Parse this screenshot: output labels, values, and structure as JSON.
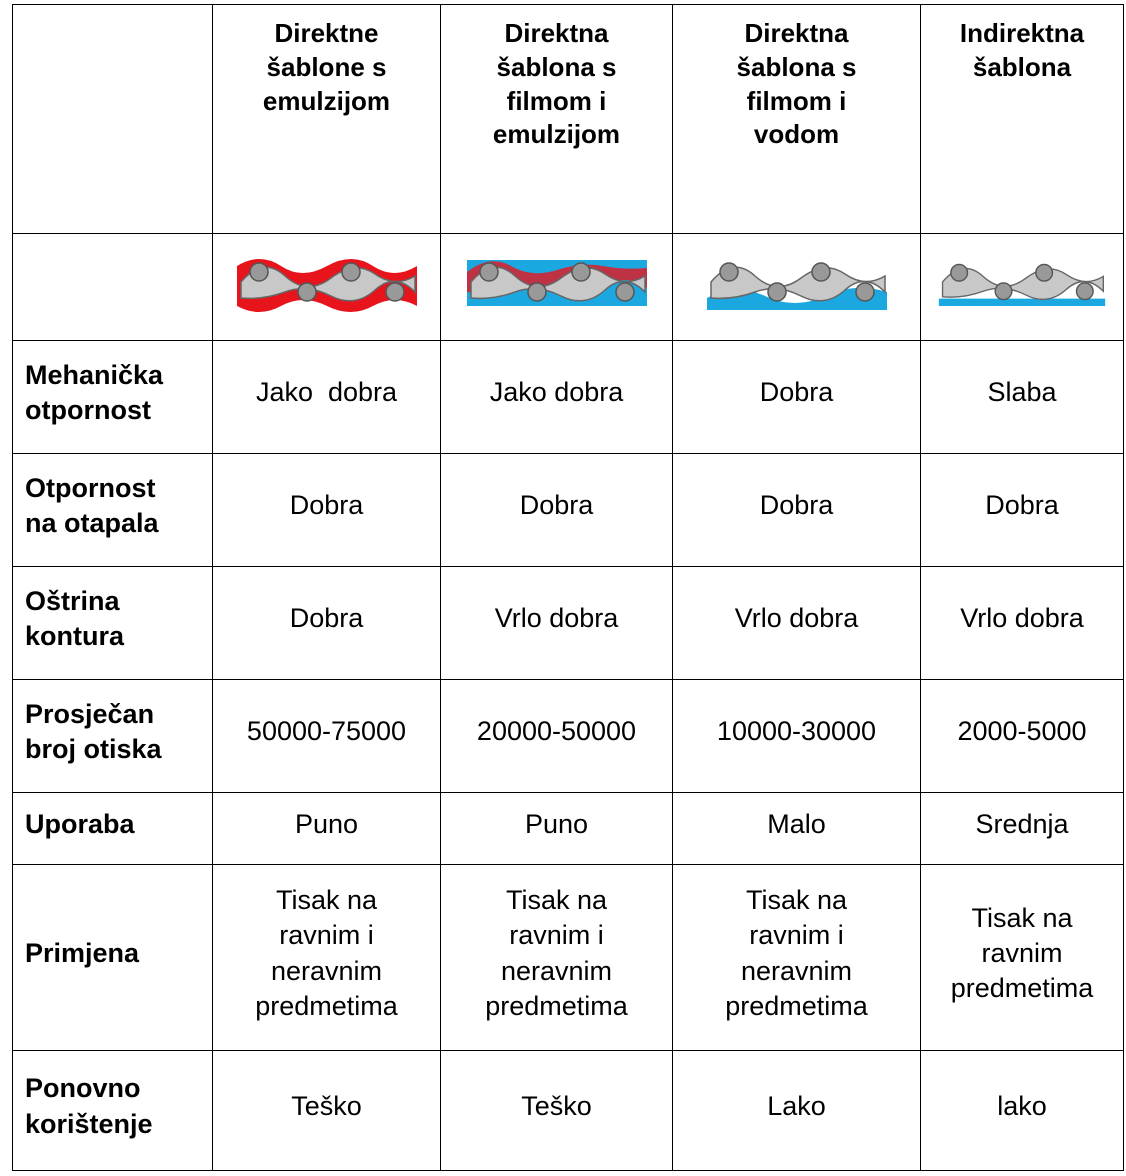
{
  "table": {
    "header": [
      "Direktne šablone s emulzijom",
      "Direktna šablona s filmom i emulzijom",
      "Direktna šablona s filmom i vodom",
      "Indirektna šablona"
    ],
    "rows": [
      {
        "label": "Mehanička otpornost",
        "cells": [
          "Jako  dobra",
          "Jako dobra",
          "Dobra",
          "Slaba"
        ]
      },
      {
        "label": "Otpornost na otapala",
        "cells": [
          "Dobra",
          "Dobra",
          "Dobra",
          "Dobra"
        ]
      },
      {
        "label": "Oštrina kontura",
        "cells": [
          "Dobra",
          "Vrlo dobra",
          "Vrlo dobra",
          "Vrlo dobra"
        ]
      },
      {
        "label": "Prosječan broj otiska",
        "cells": [
          "50000-75000",
          "20000-50000",
          "10000-30000",
          "2000-5000"
        ]
      },
      {
        "label": "Uporaba",
        "cells": [
          "Puno",
          "Puno",
          "Malo",
          "Srednja"
        ]
      },
      {
        "label": "Primjena",
        "cells": [
          "Tisak na ravnim i neravnim predmetima",
          "Tisak na ravnim i neravnim predmetima",
          "Tisak na ravnim i neravnim predmetima",
          "Tisak na ravnim predmetima"
        ]
      },
      {
        "label": "Ponovno korištenje",
        "cells": [
          "Teško",
          "Teško",
          "Lako",
          "lako"
        ]
      }
    ]
  }
}
